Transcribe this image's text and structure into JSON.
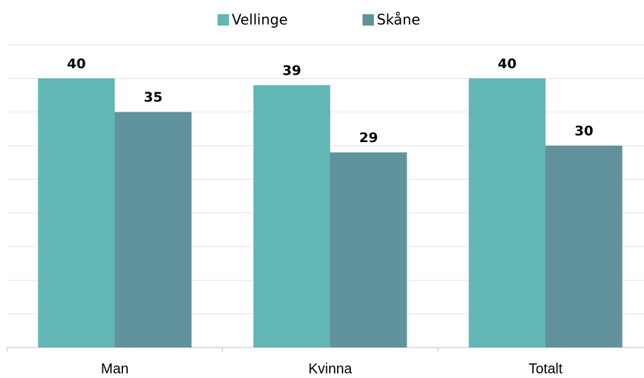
{
  "chart_data": {
    "type": "bar",
    "categories": [
      "Man",
      "Kvinna",
      "Totalt"
    ],
    "series": [
      {
        "name": "Vellinge",
        "color": "#62b6b4",
        "values": [
          40,
          39,
          40
        ]
      },
      {
        "name": "Skåne",
        "color": "#61939c",
        "values": [
          35,
          29,
          30
        ]
      }
    ],
    "ylim": [
      0,
      45
    ],
    "yticks": [
      0,
      5,
      10,
      15,
      20,
      25,
      30,
      35,
      40,
      45
    ],
    "grid": true,
    "legend": "top"
  }
}
